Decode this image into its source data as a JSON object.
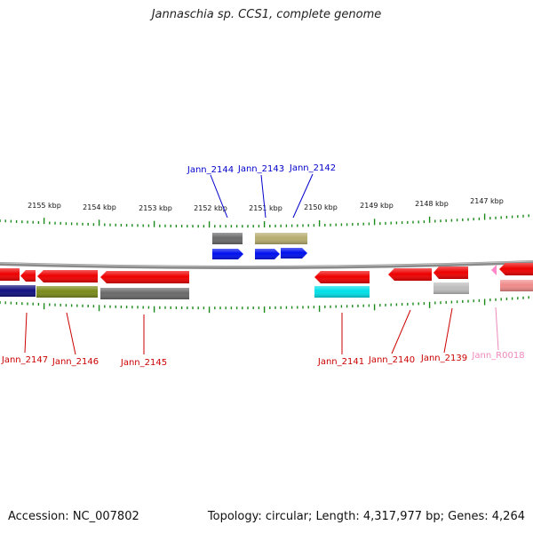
{
  "title": "Jannaschia sp. CCS1, complete genome",
  "footer": {
    "accession": "Accession: NC_007802",
    "summary": "Topology: circular; Length: 4,317,977 bp; Genes: 4,264"
  },
  "scale_ticks": [
    "2155 kbp",
    "2154 kbp",
    "2153 kbp",
    "2152 kbp",
    "2151 kbp",
    "2150 kbp",
    "2149 kbp",
    "2148 kbp",
    "2147 kbp"
  ],
  "genes": {
    "top": [
      "Jann_2144",
      "Jann_2143",
      "Jann_2142"
    ],
    "bottom": [
      "Jann_2147",
      "Jann_2146",
      "Jann_2145",
      "Jann_2141",
      "Jann_2140",
      "Jann_2139",
      "Jann_R0018"
    ]
  },
  "colors": {
    "forward_label": "#0000cc",
    "reverse_label": "#cc0000",
    "rna_label": "#ee88bb",
    "tick_mark": "#1a8a1a",
    "backbone": "#888888",
    "gene_arrow": "#ee0000",
    "product_blue": "#0010ee",
    "cog_gray": "#6a6a6a",
    "cog_khaki": "#b5ac6e",
    "cog_olive": "#7a8a1a",
    "cog_navy": "#101080",
    "cog_cyan": "#00e0e8",
    "cog_light_gray": "#bdbdbd",
    "rna_pink": "#f08a8a"
  }
}
